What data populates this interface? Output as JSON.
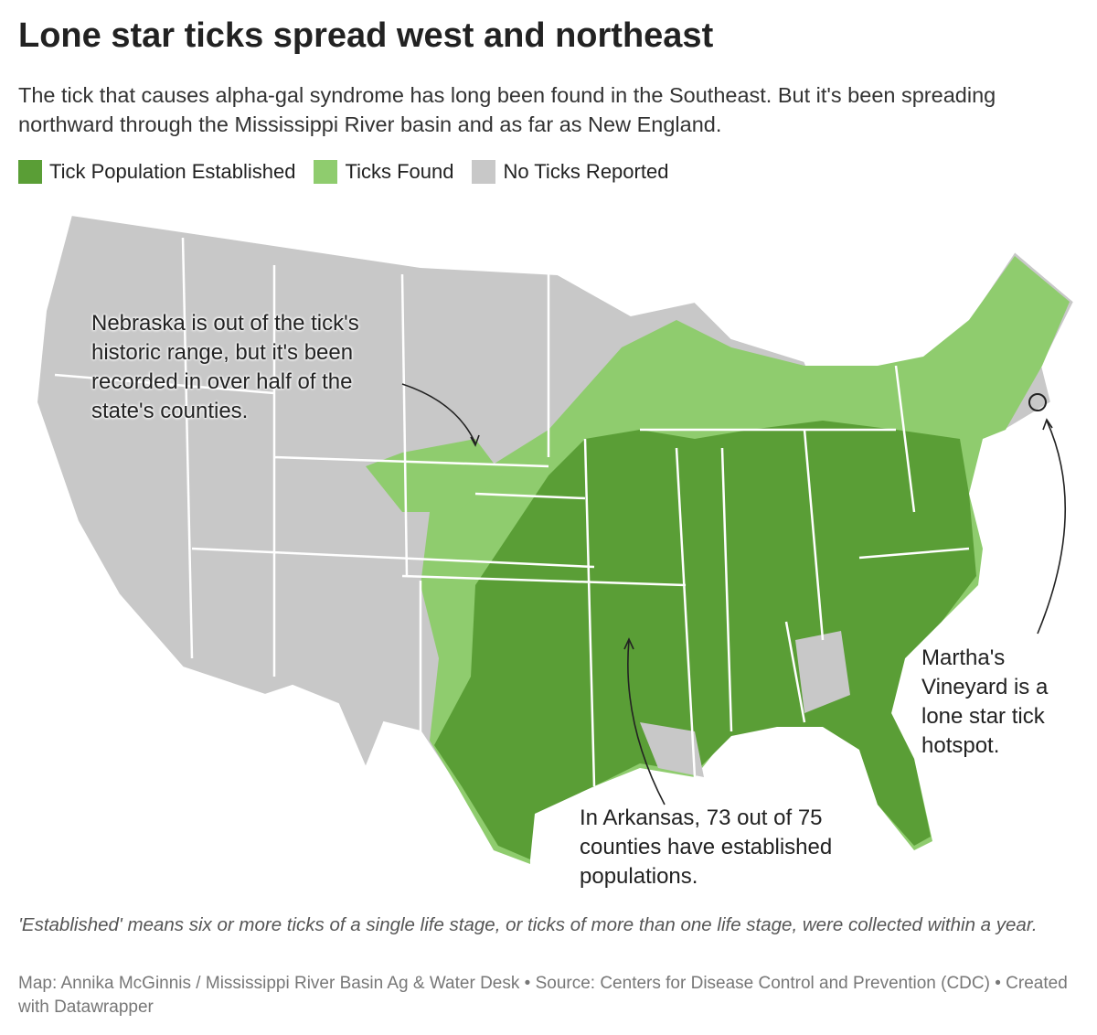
{
  "header": {
    "title": "Lone star ticks spread west and northeast",
    "subtitle": "The tick that causes alpha-gal syndrome has long been found in the Southeast. But it's been spreading northward through the Mississippi River basin and as far as New England."
  },
  "legend": [
    {
      "label": "Tick Population Established",
      "color": "#5a9e36"
    },
    {
      "label": "Ticks Found",
      "color": "#8fcc6e"
    },
    {
      "label": "No Ticks Reported",
      "color": "#c8c8c8"
    }
  ],
  "annotations": [
    {
      "text": "Nebraska is out of the tick's historic range, but it's been recorded in over half of the state's counties."
    },
    {
      "text": "In Arkansas, 73 out of 75 counties have established populations."
    },
    {
      "text": "Martha's Vineyard is a lone star tick hotspot."
    }
  ],
  "notes": {
    "footnote": "'Established' means six or more ticks of a single life stage, or ticks of more than one life stage, were collected within a year.",
    "credit": "Map: Annika McGinnis / Mississippi River Basin Ag & Water Desk • Source: Centers for Disease Control and Prevention (CDC) • Created with Datawrapper"
  }
}
